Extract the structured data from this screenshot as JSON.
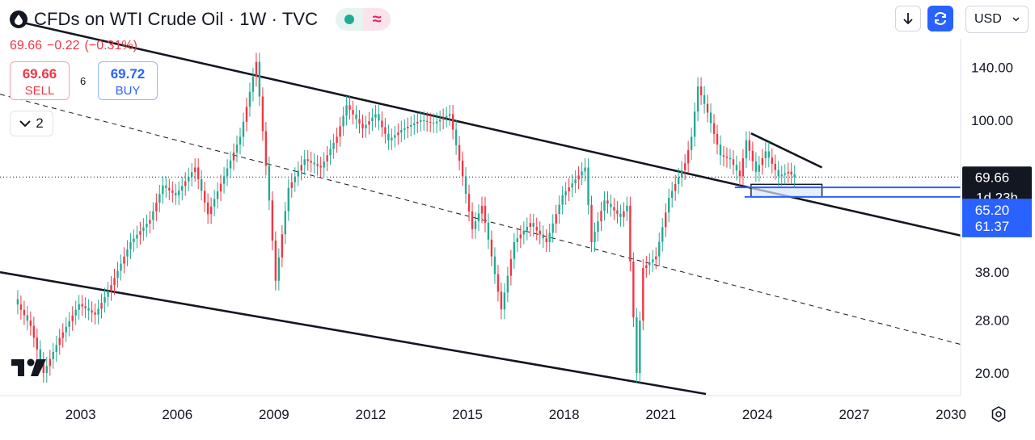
{
  "header": {
    "title": "CFDs on WTI Crude Oil · 1W · TVC",
    "price": "69.66",
    "change": "−0.22",
    "change_pct": "(−0.31%)",
    "sell_value": "69.66",
    "sell_label": "SELL",
    "spread": "6",
    "buy_value": "69.72",
    "buy_label": "BUY",
    "indicators_count": "2",
    "currency": "USD"
  },
  "colors": {
    "up": "#22ab94",
    "down": "#f23645",
    "accent": "#2962ff",
    "line": "#131722"
  },
  "icons": {
    "symbol": "oil-drop-icon",
    "market_status": "green-dot-icon",
    "alert": "wave-icon",
    "download": "arrow-down-icon",
    "sync": "sync-icon",
    "collapse": "chevron-down-icon",
    "brand": "tradingview-logo",
    "settings": "gear-icon"
  },
  "price_axis": {
    "labels": [
      "140.00",
      "100.00",
      "69.66",
      "65.20",
      "61.37",
      "38.00",
      "28.00",
      "20.00"
    ],
    "current_price": "69.66",
    "countdown": "1d 23h",
    "marker_1": "65.20",
    "marker_2": "61.37"
  },
  "time_axis": {
    "labels": [
      "2003",
      "2006",
      "2009",
      "2012",
      "2015",
      "2018",
      "2021",
      "2024",
      "2027",
      "2030"
    ]
  },
  "chart_data": {
    "type": "line",
    "scale": "log",
    "ylim": [
      17.5,
      168
    ],
    "xlim": [
      2000.5,
      2030.3
    ],
    "x": [
      2001.0,
      2001.5,
      2001.9,
      2002.4,
      2003.0,
      2003.5,
      2004.0,
      2004.6,
      2005.2,
      2005.6,
      2006.0,
      2006.6,
      2007.0,
      2007.5,
      2008.0,
      2008.5,
      2008.9,
      2009.1,
      2009.5,
      2010.0,
      2010.5,
      2011.0,
      2011.3,
      2011.8,
      2012.2,
      2012.6,
      2013.0,
      2013.6,
      2014.0,
      2014.5,
      2014.9,
      2015.2,
      2015.5,
      2015.8,
      2016.1,
      2016.5,
      2017.0,
      2017.5,
      2018.0,
      2018.7,
      2018.9,
      2019.3,
      2019.8,
      2020.0,
      2020.3,
      2020.5,
      2020.9,
      2021.3,
      2021.8,
      2022.0,
      2022.2,
      2022.5,
      2022.9,
      2023.2,
      2023.5,
      2023.7,
      2024.0,
      2024.3,
      2024.7,
      2025.0,
      2025.2
    ],
    "y": [
      32,
      27,
      20,
      25,
      31,
      29,
      35,
      46,
      53,
      66,
      62,
      74,
      55,
      70,
      90,
      145,
      60,
      36,
      65,
      78,
      74,
      90,
      110,
      95,
      104,
      88,
      94,
      100,
      98,
      104,
      70,
      50,
      58,
      42,
      30,
      46,
      52,
      46,
      62,
      74,
      46,
      60,
      54,
      58,
      20,
      39,
      42,
      61,
      76,
      90,
      124,
      105,
      80,
      78,
      70,
      88,
      72,
      82,
      70,
      72,
      69.66
    ],
    "price_ticks": [
      140,
      100,
      38,
      28,
      20
    ],
    "markers": [
      69.66,
      65.2,
      61.37
    ],
    "time_ticks": [
      2003,
      2006,
      2009,
      2012,
      2015,
      2018,
      2021,
      2024,
      2027,
      2030
    ],
    "trendlines": [
      {
        "style": "solid",
        "from": [
          2001.0,
          188
        ],
        "to": [
          2030.3,
          48
        ]
      },
      {
        "style": "solid",
        "from": [
          2000.5,
          38
        ],
        "to": [
          2022.4,
          17.5
        ]
      },
      {
        "style": "dashed",
        "from": [
          2000.5,
          118
        ],
        "to": [
          2030.3,
          24
        ]
      },
      {
        "style": "solid",
        "from": [
          2023.8,
          92
        ],
        "to": [
          2026.0,
          74
        ]
      }
    ],
    "zones": [
      {
        "x": [
          2023.8,
          2026.0
        ],
        "y": [
          66.5,
          61.37
        ]
      },
      {
        "x": [
          2023.3,
          2030.3
        ],
        "y": [
          65.2,
          65.2
        ]
      },
      {
        "x": [
          2023.6,
          2030.3
        ],
        "y": [
          61.37,
          61.37
        ]
      }
    ]
  }
}
